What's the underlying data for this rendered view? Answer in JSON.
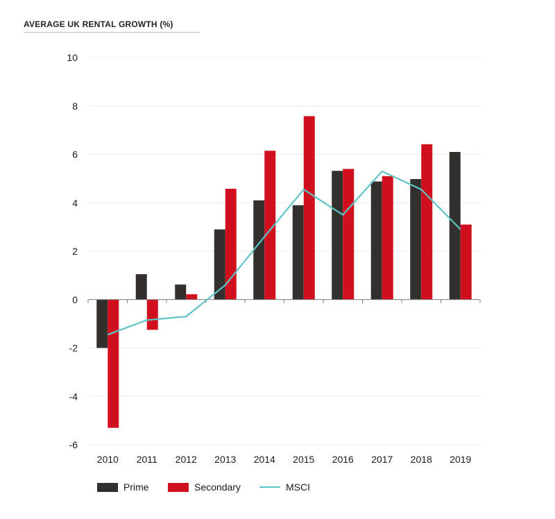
{
  "chart_title": "AVERAGE UK RENTAL GROWTH (%)",
  "colors": {
    "prime": "#332f2c",
    "secondary": "#d0101f",
    "msci": "#5ec4c6",
    "grid": "#ececec",
    "axis": "#7a7a7a"
  },
  "legend": {
    "prime": "Prime",
    "secondary": "Secondary",
    "msci": "MSCI"
  },
  "chart_data": {
    "type": "bar",
    "title": "AVERAGE UK RENTAL GROWTH (%)",
    "xlabel": "",
    "ylabel": "",
    "ylim": [
      -6,
      10
    ],
    "yticks": [
      10,
      8,
      6,
      4,
      2,
      0,
      -2,
      -4,
      -6
    ],
    "grid": true,
    "legend_position": "bottom",
    "categories": [
      "2010",
      "2011",
      "2012",
      "2013",
      "2014",
      "2015",
      "2016",
      "2017",
      "2018",
      "2019"
    ],
    "series": [
      {
        "name": "Prime",
        "type": "bar",
        "values": [
          -2.0,
          1.05,
          0.62,
          2.9,
          4.1,
          3.9,
          5.32,
          4.88,
          4.98,
          6.1
        ]
      },
      {
        "name": "Secondary",
        "type": "bar",
        "values": [
          -5.3,
          -1.25,
          0.22,
          4.58,
          6.15,
          7.58,
          5.4,
          5.1,
          6.42,
          3.1
        ]
      },
      {
        "name": "MSCI",
        "type": "line",
        "values": [
          -1.45,
          -0.85,
          -0.7,
          0.6,
          2.6,
          4.55,
          3.5,
          5.3,
          4.55,
          2.9
        ]
      }
    ]
  }
}
